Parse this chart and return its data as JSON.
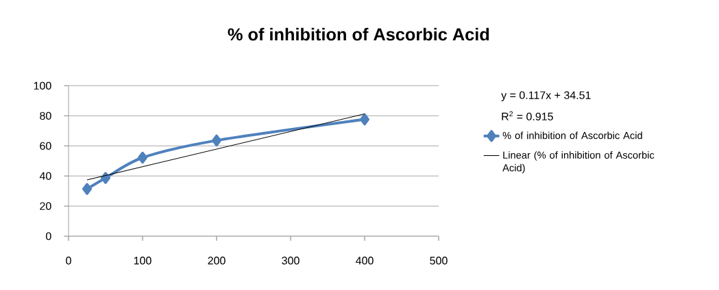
{
  "chart_data": {
    "type": "line",
    "title": "% of inhibition of Ascorbic Acid",
    "x": [
      25,
      50,
      100,
      200,
      400
    ],
    "series": [
      {
        "name": "% of inhibition of Ascorbic Acid",
        "color": "#4f81bd",
        "values": [
          31.4,
          38.7,
          52.2,
          63.6,
          77.6
        ],
        "marker": "diamond"
      },
      {
        "name": "Linear (% of inhibition of Ascorbic Acid)",
        "color": "#000000",
        "x": [
          25,
          400
        ],
        "values": [
          37.4,
          81.3
        ],
        "marker": "none"
      }
    ],
    "xlim": [
      0,
      500
    ],
    "xticks": [
      0,
      100,
      200,
      300,
      400,
      500
    ],
    "ylim": [
      0,
      100
    ],
    "yticks": [
      0,
      20,
      40,
      60,
      80,
      100
    ],
    "grid": "y",
    "legend": "right",
    "line_style": "solid",
    "annotations": [
      "y = 0.117x + 34.51",
      "R$^{2}$ = 0.915"
    ]
  }
}
